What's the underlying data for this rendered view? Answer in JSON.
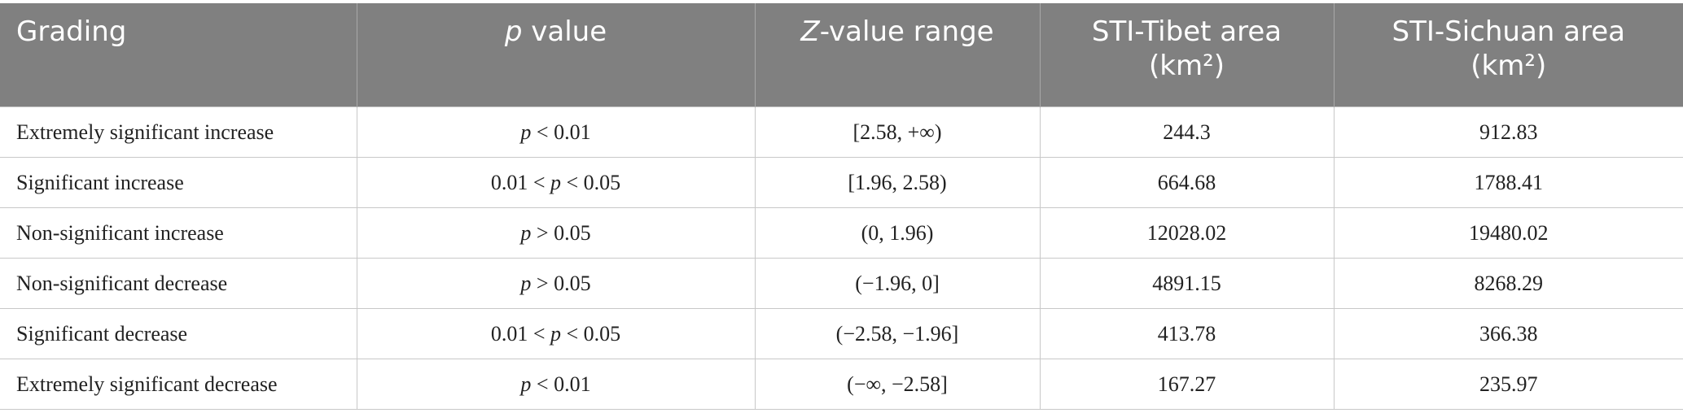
{
  "table": {
    "header": [
      "Grading",
      "p value",
      "Z-value range",
      "STI-Tibet area (km²)",
      "STI-Sichuan area (km²)"
    ],
    "rows": [
      [
        "Extremely significant increase",
        "p < 0.01",
        "[2.58, +∞)",
        "244.3",
        "912.83"
      ],
      [
        "Significant increase",
        "0.01 < p < 0.05",
        "[1.96, 2.58)",
        "664.68",
        "1788.41"
      ],
      [
        "Non-significant increase",
        "p > 0.05",
        "(0, 1.96)",
        "12028.02",
        "19480.02"
      ],
      [
        "Non-significant decrease",
        "p > 0.05",
        "(−1.96, 0]",
        "4891.15",
        "8268.29"
      ],
      [
        "Significant decrease",
        "0.01 < p < 0.05",
        "(−2.58, −1.96]",
        "413.78",
        "366.38"
      ],
      [
        "Extremely significant decrease",
        "p < 0.01",
        "(−∞, −2.58]",
        "167.27",
        "235.97"
      ]
    ]
  }
}
